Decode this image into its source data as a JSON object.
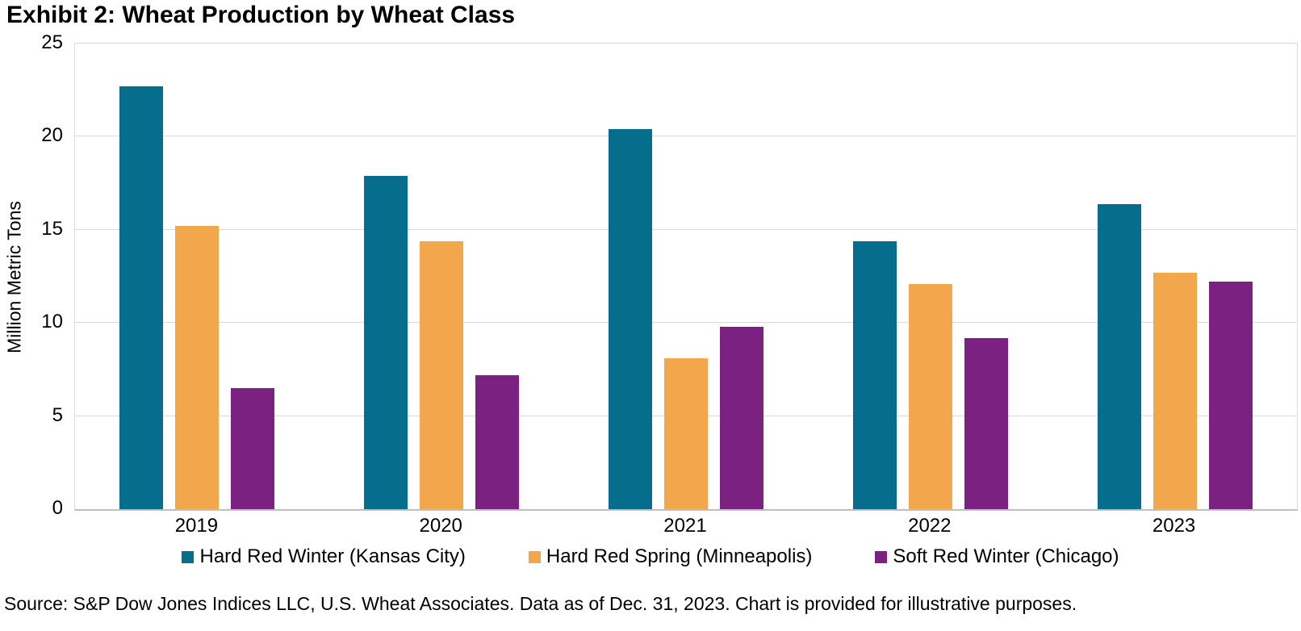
{
  "title": "Exhibit 2: Wheat Production by Wheat Class",
  "source": "Source: S&P Dow Jones Indices LLC, U.S. Wheat Associates. Data as of Dec. 31, 2023. Chart is provided for illustrative purposes.",
  "colors": {
    "hard_red_winter": "#076d8c",
    "hard_red_spring": "#f2a74d",
    "soft_red_winter": "#7a2182",
    "gridline": "#d9d9d9",
    "axis_line": "#bfbfbf",
    "text": "#000000"
  },
  "chart_data": {
    "type": "bar",
    "title": "Exhibit 2: Wheat Production by Wheat Class",
    "categories": [
      "2019",
      "2020",
      "2021",
      "2022",
      "2023"
    ],
    "series": [
      {
        "name": "Hard Red Winter (Kansas City)",
        "color": "#076d8c",
        "values": [
          22.7,
          17.9,
          20.4,
          14.4,
          16.4
        ]
      },
      {
        "name": "Hard Red Spring (Minneapolis)",
        "color": "#f2a74d",
        "values": [
          15.2,
          14.4,
          8.1,
          12.1,
          12.7
        ]
      },
      {
        "name": "Soft Red Winter (Chicago)",
        "color": "#7a2182",
        "values": [
          6.5,
          7.2,
          9.8,
          9.2,
          12.2
        ]
      }
    ],
    "xlabel": "",
    "ylabel": "Million Metric Tons",
    "ylim": [
      0,
      25
    ],
    "yticks": [
      0,
      5,
      10,
      15,
      20,
      25
    ],
    "grid": true,
    "legend_position": "bottom"
  }
}
